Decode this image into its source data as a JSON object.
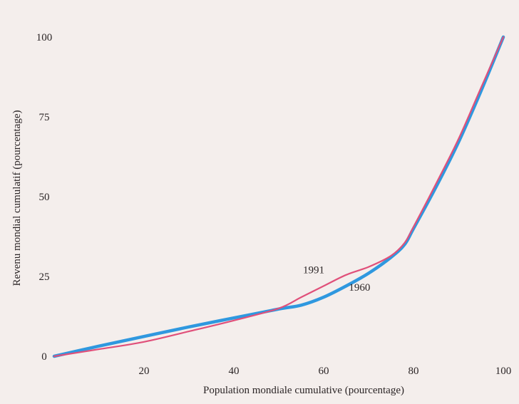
{
  "chart_data": {
    "type": "line",
    "title": "",
    "xlabel": "Population mondiale cumulative (pourcentage)",
    "ylabel": "Revenu mondial cumulatif (pourcentage)",
    "xlim": [
      0,
      100
    ],
    "ylim": [
      0,
      100
    ],
    "x_ticks": [
      "20",
      "40",
      "60",
      "80",
      "100"
    ],
    "y_ticks": [
      "0",
      "25",
      "50",
      "75",
      "100"
    ],
    "grid": false,
    "legend": "none",
    "series": [
      {
        "name": "1960",
        "color": "#2f98df",
        "x": [
          0,
          10,
          20,
          30,
          40,
          50,
          55,
          60,
          65,
          70,
          75,
          78,
          80,
          85,
          90,
          95,
          100
        ],
        "y": [
          0,
          3.2,
          6.2,
          9.2,
          12.0,
          14.8,
          16.0,
          18.5,
          22.0,
          26.0,
          31.0,
          35.0,
          40.0,
          53.0,
          67.0,
          83.0,
          100
        ]
      },
      {
        "name": "1991",
        "color": "#e0507a",
        "x": [
          0,
          10,
          20,
          30,
          40,
          50,
          55,
          60,
          65,
          70,
          75,
          78,
          80,
          85,
          90,
          95,
          100
        ],
        "y": [
          0,
          2.2,
          4.5,
          7.8,
          11.2,
          15.0,
          18.5,
          22.0,
          25.5,
          28.0,
          31.5,
          35.5,
          40.5,
          54.0,
          68.0,
          84.0,
          100
        ]
      }
    ],
    "annotations": [
      {
        "text": "1991",
        "series": "1991",
        "x": 60,
        "y": 22
      },
      {
        "text": "1960",
        "series": "1960",
        "x": 68,
        "y": 24.5
      }
    ]
  }
}
